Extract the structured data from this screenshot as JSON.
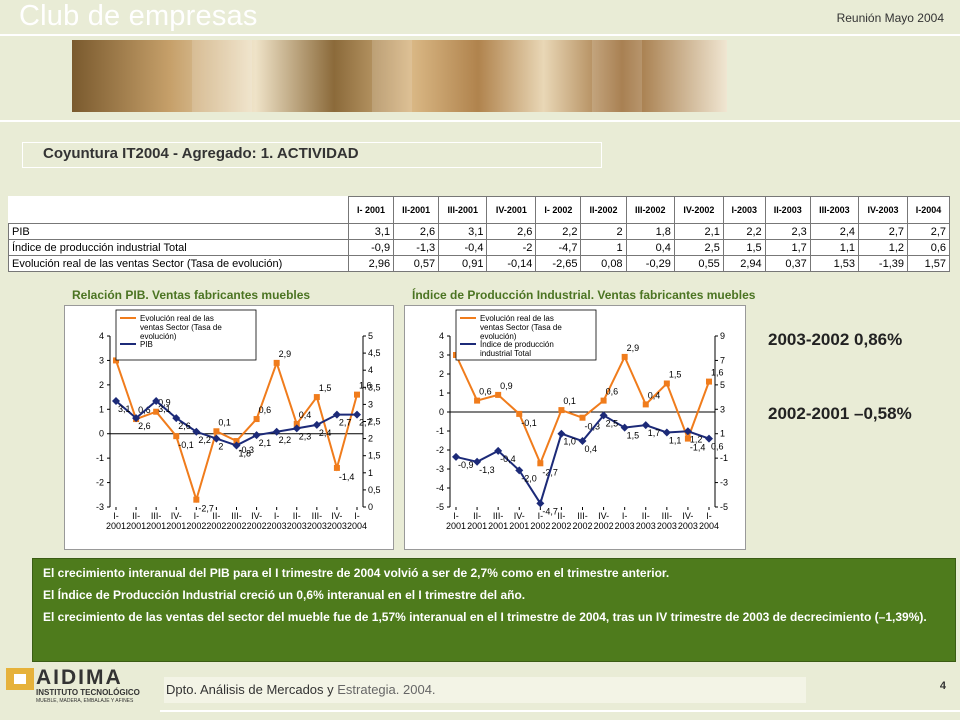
{
  "header": {
    "brand": "Club de empresas",
    "meeting": "Reunión Mayo 2004"
  },
  "section_title": "Coyuntura IT2004 - Agregado: 1. ACTIVIDAD",
  "table": {
    "columns": [
      "I- 2001",
      "II-2001",
      "III-2001",
      "IV-2001",
      "I- 2002",
      "II-2002",
      "III-2002",
      "IV-2002",
      "I-2003",
      "II-2003",
      "III-2003",
      "IV-2003",
      "I-2004"
    ],
    "rows": [
      {
        "label": "PIB",
        "values": [
          "3,1",
          "2,6",
          "3,1",
          "2,6",
          "2,2",
          "2",
          "1,8",
          "2,1",
          "2,2",
          "2,3",
          "2,4",
          "2,7",
          "2,7"
        ]
      },
      {
        "label": "Índice de producción industrial Total",
        "values": [
          "-0,9",
          "-1,3",
          "-0,4",
          "-2",
          "-4,7",
          "1",
          "0,4",
          "2,5",
          "1,5",
          "1,7",
          "1,1",
          "1,2",
          "0,6"
        ]
      },
      {
        "label": "Evolución real de las ventas Sector (Tasa de evolución)",
        "values": [
          "2,96",
          "0,57",
          "0,91",
          "-0,14",
          "-2,65",
          "0,08",
          "-0,29",
          "0,55",
          "2,94",
          "0,37",
          "1,53",
          "-1,39",
          "1,57"
        ]
      }
    ]
  },
  "charts": {
    "left_title": "Relación PIB. Ventas fabricantes muebles",
    "right_title": "Índice de Producción Industrial. Ventas fabricantes muebles"
  },
  "chart_data": [
    {
      "type": "line",
      "title": "Relación PIB. Ventas fabricantes muebles",
      "categories": [
        "I-2001",
        "II-2001",
        "III-2001",
        "IV-2001",
        "I-2002",
        "II-2002",
        "III-2002",
        "IV-2002",
        "I-2003",
        "II-2003",
        "III-2003",
        "IV-2003",
        "I-2004"
      ],
      "category_tick_labels": [
        [
          "I-",
          "2001"
        ],
        [
          "II-",
          "2001"
        ],
        [
          "III-",
          "2001"
        ],
        [
          "IV-",
          "2001"
        ],
        [
          "I-",
          "2002"
        ],
        [
          "II-",
          "2002"
        ],
        [
          "III-",
          "2002"
        ],
        [
          "IV-",
          "2002"
        ],
        [
          "I-",
          "2003"
        ],
        [
          "II-",
          "2003"
        ],
        [
          "III-",
          "2003"
        ],
        [
          "IV-",
          "2003"
        ],
        [
          "I-",
          "2004"
        ]
      ],
      "series": [
        {
          "name": "Evolución real de las ventas Sector (Tasa de evolución)",
          "axis": "left",
          "color": "#f07c1c",
          "values": [
            3.0,
            0.6,
            0.9,
            -0.1,
            -2.7,
            0.1,
            -0.3,
            0.6,
            2.9,
            0.4,
            1.5,
            -1.4,
            1.6
          ],
          "labels": [
            "3,0",
            "0,6",
            "0,9",
            "-0,1",
            "-2,7",
            "0,1",
            "-0,3",
            "0,6",
            "2,9",
            "0,4",
            "1,5",
            "-1,4",
            "1,6"
          ]
        },
        {
          "name": "PIB",
          "axis": "right",
          "color": "#1c2a78",
          "values": [
            3.1,
            2.6,
            3.1,
            2.6,
            2.2,
            2.0,
            1.8,
            2.1,
            2.2,
            2.3,
            2.4,
            2.7,
            2.7
          ],
          "labels": [
            "3,1",
            "2,6",
            "3,1",
            "2,6",
            "2,2",
            "2",
            "1,8",
            "2,1",
            "2,2",
            "2,3",
            "2,4",
            "2,7",
            "2,7"
          ]
        }
      ],
      "y_left": {
        "ylim": [
          -3,
          4
        ],
        "ticks": [
          "-3",
          "-2",
          "-1",
          "0",
          "1",
          "2",
          "3",
          "4"
        ]
      },
      "y_right": {
        "ylim": [
          0,
          5
        ],
        "ticks": [
          "0",
          "0,5",
          "1",
          "1,5",
          "2",
          "2,5",
          "3",
          "3,5",
          "4",
          "4,5",
          "5"
        ]
      },
      "legend": "top-left"
    },
    {
      "type": "line",
      "title": "Índice de Producción Industrial. Ventas fabricantes muebles",
      "categories": [
        "I-2001",
        "II-2001",
        "III-2001",
        "IV-2001",
        "I-2002",
        "II-2002",
        "III-2002",
        "IV-2002",
        "I-2003",
        "II-2003",
        "III-2003",
        "IV-2003",
        "I-2004"
      ],
      "category_tick_labels": [
        [
          "I-",
          "2001"
        ],
        [
          "II-",
          "2001"
        ],
        [
          "III-",
          "2001"
        ],
        [
          "IV-",
          "2001"
        ],
        [
          "I-",
          "2002"
        ],
        [
          "II-",
          "2002"
        ],
        [
          "III-",
          "2002"
        ],
        [
          "IV-",
          "2002"
        ],
        [
          "I-",
          "2003"
        ],
        [
          "II-",
          "2003"
        ],
        [
          "III-",
          "2003"
        ],
        [
          "IV-",
          "2003"
        ],
        [
          "I-",
          "2004"
        ]
      ],
      "series": [
        {
          "name": "Evolución real de las ventas Sector (Tasa de evolución)",
          "axis": "left",
          "color": "#f07c1c",
          "values": [
            3.0,
            0.6,
            0.9,
            -0.1,
            -2.7,
            0.1,
            -0.3,
            0.6,
            2.9,
            0.4,
            1.5,
            -1.4,
            1.6
          ],
          "labels": [
            "3,0",
            "0,6",
            "0,9",
            "-0,1",
            "-2,7",
            "0,1",
            "-0,3",
            "0,6",
            "2,9",
            "0,4",
            "1,5",
            "-1,4",
            "1,6"
          ]
        },
        {
          "name": "Índice de producción industrial Total",
          "axis": "right",
          "color": "#1c2a78",
          "values": [
            -0.9,
            -1.3,
            -0.4,
            -2.0,
            -4.7,
            1.0,
            0.4,
            2.5,
            1.5,
            1.7,
            1.1,
            1.2,
            0.6
          ],
          "labels": [
            "-0,9",
            "-1,3",
            "-0,4",
            "-2,0",
            "-4,7",
            "1,0",
            "0,4",
            "2,5",
            "1,5",
            "1,7",
            "1,1",
            "1,2",
            "0,6"
          ]
        }
      ],
      "y_left": {
        "ylim": [
          -5,
          4
        ],
        "ticks": [
          "-5",
          "-4",
          "-3",
          "-2",
          "-1",
          "0",
          "1",
          "2",
          "3",
          "4"
        ]
      },
      "y_right": {
        "ylim": [
          -5,
          9
        ],
        "ticks": [
          "-5",
          "-3",
          "-1",
          "1",
          "3",
          "5",
          "7",
          "9"
        ]
      },
      "legend": "top-left"
    }
  ],
  "growth": {
    "line1": "2003-2002   0,86%",
    "line2": "2002-2001 –0,58%"
  },
  "notes": [
    "El crecimiento interanual del PIB para el I trimestre de 2004 volvió a ser de 2,7% como en el trimestre anterior.",
    "El Índice de Producción Industrial creció un 0,6% interanual en el I trimestre del año.",
    "El crecimiento de las ventas del sector del mueble fue de 1,57% interanual en el I trimestre de 2004, tras un IV trimestre de 2003 de decrecimiento (–1,39%)."
  ],
  "footer": {
    "logo_name": "AIDIMA",
    "logo_sub1": "INSTITUTO TECNOLÓGICO",
    "logo_sub2": "MUEBLE, MADERA, EMBALAJE Y AFINES",
    "dept_a": "Dpto. Análisis de Mercados y ",
    "dept_b": "Estrategia. 2004.",
    "page": "4"
  }
}
